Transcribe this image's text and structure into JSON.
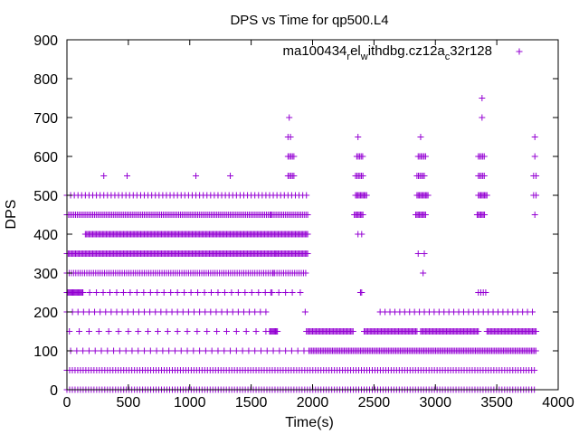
{
  "chart_data": {
    "type": "scatter",
    "title": "DPS vs Time for qp500.L4",
    "xlabel": "Time(s)",
    "ylabel": "DPS",
    "xlim": [
      0,
      4000
    ],
    "ylim": [
      0,
      900
    ],
    "x_ticks": [
      0,
      500,
      1000,
      1500,
      2000,
      2500,
      3000,
      3500,
      4000
    ],
    "y_ticks": [
      0,
      100,
      200,
      300,
      400,
      500,
      600,
      700,
      800,
      900
    ],
    "grid": false,
    "legend_position": "top-right",
    "marker": "plus",
    "colors": {
      "series": "#9400d3",
      "axis": "#000000"
    },
    "series": [
      {
        "name_parts": [
          "ma100434",
          "r",
          "el",
          "w",
          "ithdbg.cz12a",
          "c",
          "32r128"
        ],
        "bands": [
          {
            "y": 0,
            "x_start": 0,
            "x_end": 3820,
            "step": 22
          },
          {
            "y": 50,
            "x_start": 0,
            "x_end": 3820,
            "step": 22
          },
          {
            "y": 100,
            "x_start": 30,
            "x_end": 1970,
            "step": 50
          },
          {
            "y": 100,
            "x_start": 1970,
            "x_end": 3820,
            "step": 12
          },
          {
            "y": 150,
            "x_start": 20,
            "x_end": 1650,
            "step": 80
          },
          {
            "y": 150,
            "x_start": 1650,
            "x_end": 1720,
            "step": 8
          },
          {
            "y": 150,
            "x_start": 1950,
            "x_end": 2330,
            "step": 10
          },
          {
            "y": 150,
            "x_start": 2420,
            "x_end": 2850,
            "step": 10
          },
          {
            "y": 150,
            "x_start": 2880,
            "x_end": 3350,
            "step": 10
          },
          {
            "y": 150,
            "x_start": 3420,
            "x_end": 3820,
            "step": 10
          },
          {
            "y": 200,
            "x_start": 0,
            "x_end": 1620,
            "step": 45
          },
          {
            "y": 200,
            "x_start": 2550,
            "x_end": 3820,
            "step": 40
          },
          {
            "y": 250,
            "x_start": 0,
            "x_end": 130,
            "step": 8
          },
          {
            "y": 250,
            "x_start": 130,
            "x_end": 1880,
            "step": 55
          },
          {
            "y": 250,
            "x_start": 3350,
            "x_end": 3420,
            "step": 20
          },
          {
            "y": 300,
            "x_start": 0,
            "x_end": 1960,
            "step": 18
          },
          {
            "y": 350,
            "x_start": 0,
            "x_end": 1960,
            "step": 10
          },
          {
            "y": 400,
            "x_start": 150,
            "x_end": 1960,
            "step": 10
          },
          {
            "y": 450,
            "x_start": 0,
            "x_end": 1960,
            "step": 14
          },
          {
            "y": 450,
            "x_start": 2340,
            "x_end": 2410,
            "step": 10
          },
          {
            "y": 450,
            "x_start": 2840,
            "x_end": 2920,
            "step": 10
          },
          {
            "y": 450,
            "x_start": 3340,
            "x_end": 3400,
            "step": 10
          },
          {
            "y": 500,
            "x_start": 0,
            "x_end": 1950,
            "step": 30
          },
          {
            "y": 500,
            "x_start": 2350,
            "x_end": 2440,
            "step": 10
          },
          {
            "y": 500,
            "x_start": 2850,
            "x_end": 2940,
            "step": 10
          },
          {
            "y": 500,
            "x_start": 3350,
            "x_end": 3420,
            "step": 10
          },
          {
            "y": 550,
            "x_start": 1800,
            "x_end": 1850,
            "step": 12
          },
          {
            "y": 550,
            "x_start": 2350,
            "x_end": 2410,
            "step": 12
          },
          {
            "y": 550,
            "x_start": 2850,
            "x_end": 2920,
            "step": 12
          },
          {
            "y": 550,
            "x_start": 3350,
            "x_end": 3400,
            "step": 12
          },
          {
            "y": 600,
            "x_start": 1800,
            "x_end": 1850,
            "step": 12
          },
          {
            "y": 600,
            "x_start": 2360,
            "x_end": 2410,
            "step": 12
          },
          {
            "y": 600,
            "x_start": 2860,
            "x_end": 2920,
            "step": 12
          },
          {
            "y": 600,
            "x_start": 3350,
            "x_end": 3400,
            "step": 12
          }
        ],
        "points": [
          [
            2390,
            250
          ],
          [
            2400,
            250
          ],
          [
            2370,
            400
          ],
          [
            2400,
            400
          ],
          [
            2860,
            350
          ],
          [
            2910,
            350
          ],
          [
            2900,
            300
          ],
          [
            300,
            550
          ],
          [
            490,
            550
          ],
          [
            1050,
            550
          ],
          [
            1330,
            550
          ],
          [
            1800,
            650
          ],
          [
            1820,
            650
          ],
          [
            2370,
            650
          ],
          [
            2880,
            650
          ],
          [
            3810,
            650
          ],
          [
            1810,
            700
          ],
          [
            3380,
            700
          ],
          [
            3380,
            750
          ],
          [
            3800,
            550
          ],
          [
            3820,
            550
          ],
          [
            3800,
            500
          ],
          [
            3820,
            500
          ],
          [
            3810,
            450
          ],
          [
            3810,
            600
          ],
          [
            1660,
            450
          ],
          [
            1700,
            350
          ],
          [
            1680,
            300
          ],
          [
            1660,
            250
          ],
          [
            1900,
            250
          ],
          [
            1940,
            200
          ]
        ]
      }
    ]
  }
}
